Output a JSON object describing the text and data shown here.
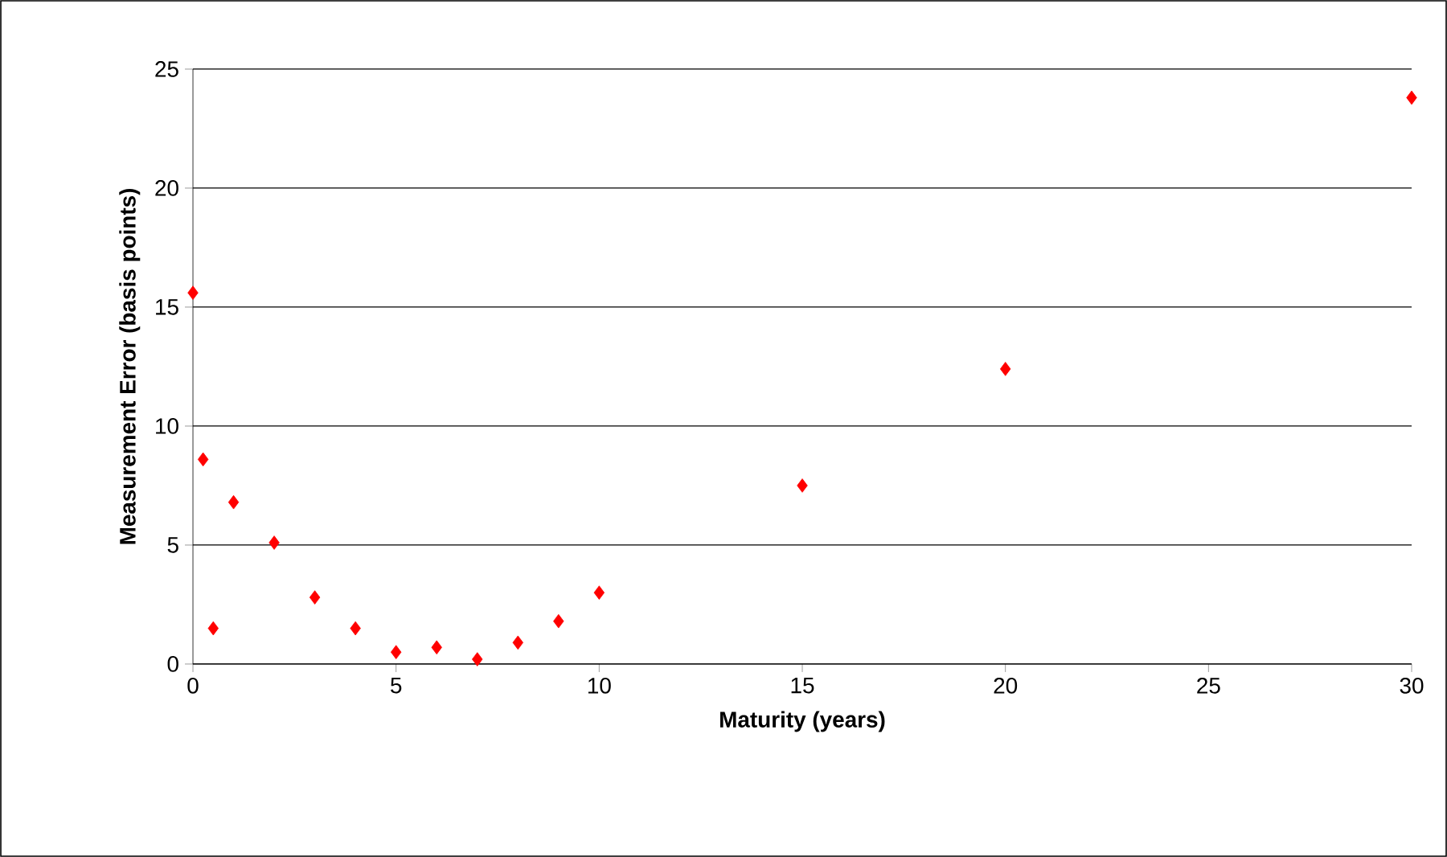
{
  "chart_data": {
    "type": "scatter",
    "xlabel": "Maturity (years)",
    "ylabel": "Measurement Error (basis points)",
    "x": [
      0,
      0.25,
      0.5,
      1,
      2,
      3,
      4,
      5,
      6,
      7,
      8,
      9,
      10,
      15,
      20,
      30
    ],
    "series": [
      {
        "color": "#ff0000",
        "values": [
          15.6,
          8.6,
          1.5,
          6.8,
          5.1,
          2.8,
          1.5,
          0.5,
          0.7,
          0.2,
          0.9,
          1.8,
          3.0,
          7.5,
          12.4,
          23.8
        ]
      }
    ],
    "marker": "diamond",
    "grid": "y",
    "xlim": [
      0,
      30
    ],
    "xticks": [
      0,
      5,
      10,
      15,
      20,
      25,
      30
    ],
    "ylim": [
      0,
      25
    ],
    "yticks": [
      0,
      5,
      10,
      15,
      20,
      25
    ]
  }
}
